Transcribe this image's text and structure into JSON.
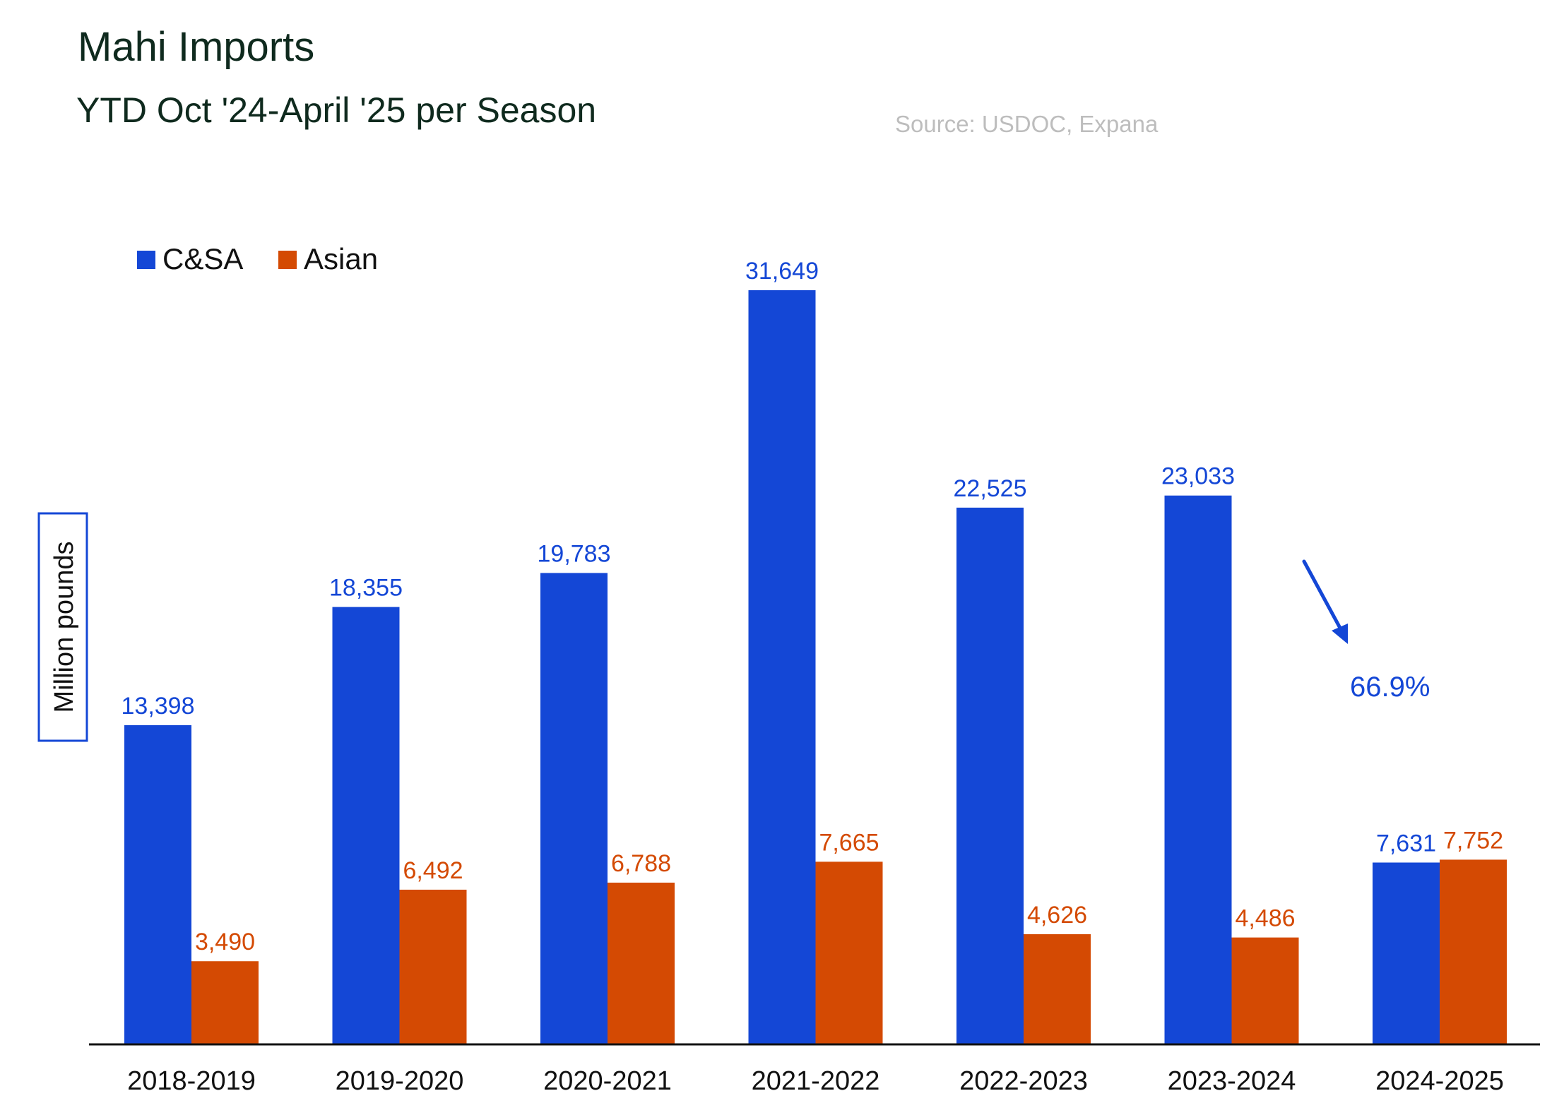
{
  "chart_data": {
    "type": "bar",
    "title": "Mahi Imports",
    "subtitle": "YTD Oct '24-April '25 per Season",
    "source": "Source: USDOC, Expana",
    "ylabel": "Million pounds",
    "xlabel": "",
    "ylim": [
      0,
      33000
    ],
    "grid": false,
    "legend_position": "top-left",
    "categories": [
      "2018-2019",
      "2019-2020",
      "2020-2021",
      "2021-2022",
      "2022-2023",
      "2023-2024",
      "2024-2025"
    ],
    "series": [
      {
        "name": "C&SA",
        "color": "#1447D6",
        "values": [
          13398,
          18355,
          19783,
          31649,
          22525,
          23033,
          7631
        ],
        "labels": [
          "13,398",
          "18,355",
          "19,783",
          "31,649",
          "22,525",
          "23,033",
          "7,631"
        ]
      },
      {
        "name": "Asian",
        "color": "#D44A03",
        "values": [
          3490,
          6492,
          6788,
          7665,
          4626,
          4486,
          7752
        ],
        "labels": [
          "3,490",
          "6,492",
          "6,788",
          "7,665",
          "4,626",
          "4,486",
          "7,752"
        ]
      }
    ],
    "annotation": {
      "text": "66.9%",
      "color": "#1447D6",
      "icon": "down-arrow-icon"
    },
    "colors": {
      "title": "#0F2A1E",
      "source": "#BDBDBD",
      "axis": "#111111",
      "axis_label_border": "#1447D6"
    }
  }
}
